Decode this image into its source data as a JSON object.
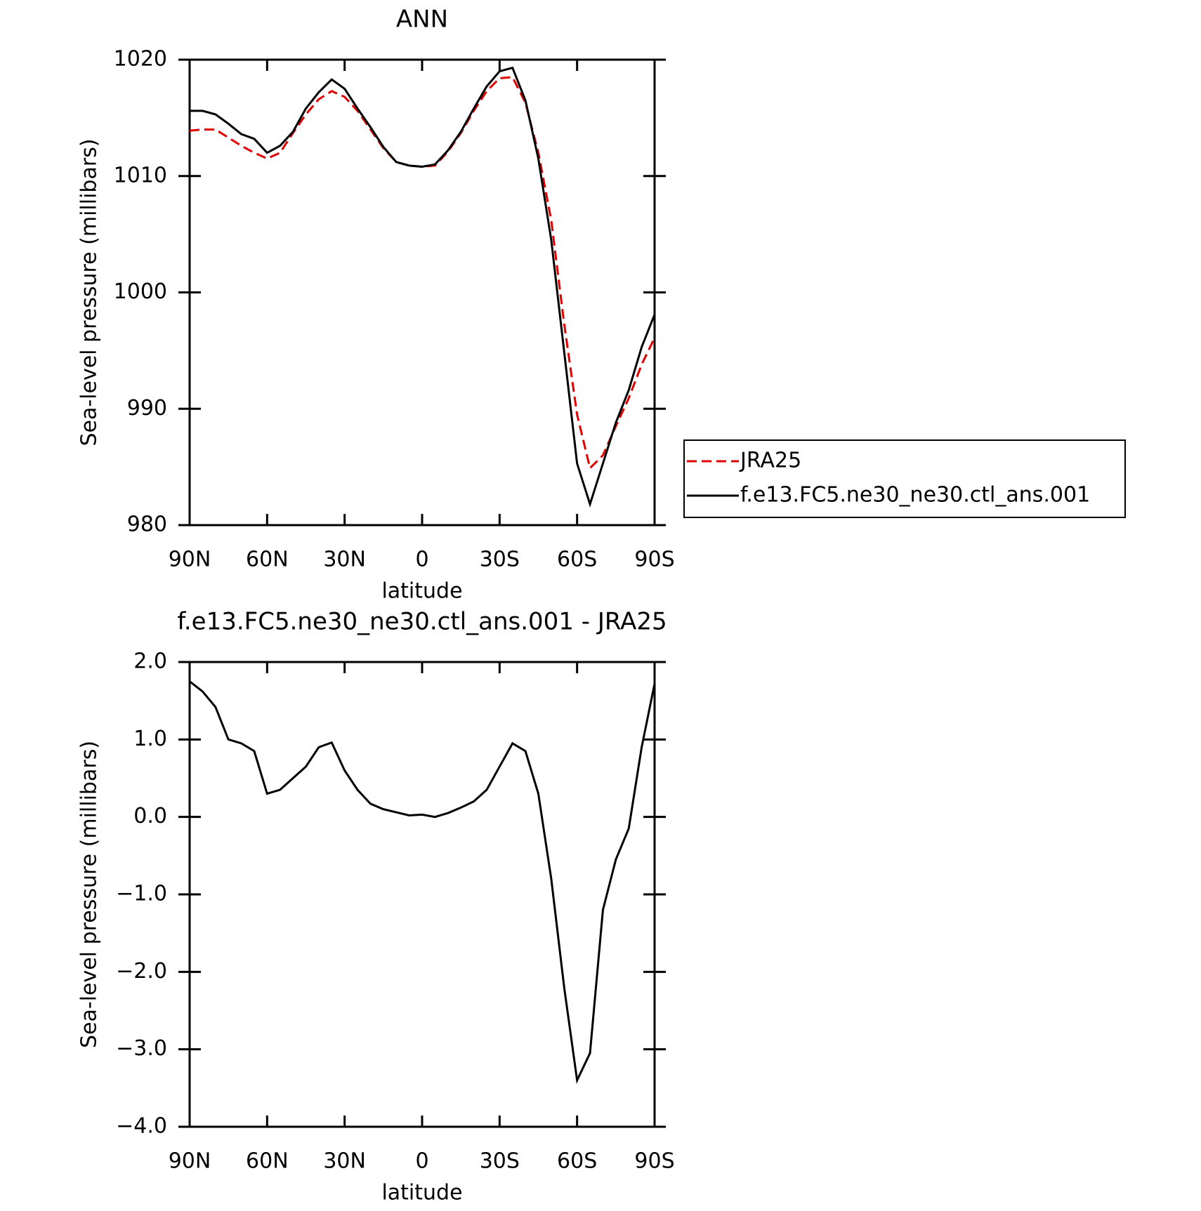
{
  "chart_data": [
    {
      "type": "line",
      "title": "ANN",
      "x_label": "latitude",
      "y_label": "Sea-level pressure (millibars)",
      "x": [
        90,
        85,
        80,
        75,
        70,
        65,
        60,
        55,
        50,
        45,
        40,
        35,
        30,
        25,
        20,
        15,
        10,
        5,
        0,
        -5,
        -10,
        -15,
        -20,
        -25,
        -30,
        -35,
        -40,
        -45,
        -50,
        -55,
        -60,
        -65,
        -70,
        -75,
        -80,
        -85,
        -90
      ],
      "series": [
        {
          "name": "JRA25",
          "color": "#e00000",
          "dash": true,
          "values": [
            1013.9,
            1014.0,
            1014.0,
            1013.3,
            1012.6,
            1012.0,
            1011.5,
            1012.0,
            1013.7,
            1015.3,
            1016.6,
            1017.3,
            1016.8,
            1015.6,
            1014.0,
            1012.4,
            1011.2,
            1010.9,
            1010.8,
            1010.9,
            1012.1,
            1013.7,
            1015.6,
            1017.3,
            1018.4,
            1018.5,
            1016.3,
            1012.0,
            1006.2,
            997.3,
            989.5,
            984.9,
            986.0,
            988.5,
            990.9,
            993.8,
            996.1
          ]
        },
        {
          "name": "f.e13.FC5.ne30_ne30.ctl_ans.001",
          "color": "#000000",
          "dash": false,
          "values": [
            1015.6,
            1015.6,
            1015.3,
            1014.5,
            1013.6,
            1013.2,
            1012.0,
            1012.6,
            1013.8,
            1015.8,
            1017.2,
            1018.3,
            1017.5,
            1015.8,
            1014.2,
            1012.5,
            1011.2,
            1010.9,
            1010.8,
            1011.0,
            1012.2,
            1013.8,
            1015.8,
            1017.7,
            1019.0,
            1019.3,
            1016.5,
            1011.5,
            1004.5,
            994.9,
            985.3,
            981.8,
            985.3,
            988.8,
            991.6,
            995.3,
            998.1
          ]
        }
      ],
      "xlim": [
        90,
        -90
      ],
      "xticks": [
        {
          "value": 90,
          "label": "90N"
        },
        {
          "value": 60,
          "label": "60N"
        },
        {
          "value": 30,
          "label": "30N"
        },
        0,
        {
          "value": -30,
          "label": "30S"
        },
        {
          "value": -60,
          "label": "60S"
        },
        {
          "value": -90,
          "label": "90S"
        }
      ],
      "ylim": [
        980,
        1020
      ],
      "yticks": [
        980,
        990,
        1000,
        1010,
        1020
      ],
      "legend": "right"
    },
    {
      "type": "line",
      "title": "f.e13.FC5.ne30_ne30.ctl_ans.001 - JRA25",
      "x_label": "latitude",
      "y_label": "Sea-level pressure (millibars)",
      "x": [
        90,
        85,
        80,
        75,
        70,
        65,
        60,
        55,
        50,
        45,
        40,
        35,
        30,
        25,
        20,
        15,
        10,
        5,
        0,
        -5,
        -10,
        -15,
        -20,
        -25,
        -30,
        -35,
        -40,
        -45,
        -50,
        -55,
        -60,
        -65,
        -70,
        -75,
        -80,
        -85,
        -90
      ],
      "color": "#000000",
      "values": [
        1.75,
        1.62,
        1.42,
        1.0,
        0.95,
        0.85,
        0.3,
        0.35,
        0.5,
        0.65,
        0.9,
        0.96,
        0.6,
        0.35,
        0.17,
        0.1,
        0.06,
        0.02,
        0.03,
        0.0,
        0.05,
        0.12,
        0.2,
        0.35,
        0.65,
        0.95,
        0.85,
        0.3,
        -0.8,
        -2.2,
        -3.4,
        -3.05,
        -1.2,
        -0.55,
        -0.15,
        0.9,
        1.72
      ],
      "xlim": [
        90,
        -90
      ],
      "xticks": [
        {
          "value": 90,
          "label": "90N"
        },
        {
          "value": 60,
          "label": "60N"
        },
        {
          "value": 30,
          "label": "30N"
        },
        0,
        {
          "value": -30,
          "label": "30S"
        },
        {
          "value": -60,
          "label": "60S"
        },
        {
          "value": -90,
          "label": "90S"
        }
      ],
      "ylim": [
        -4,
        2
      ],
      "yticks": [
        {
          "value": -4,
          "label": "−4.0"
        },
        {
          "value": -3,
          "label": "−3.0"
        },
        {
          "value": -2,
          "label": "−2.0"
        },
        {
          "value": -1,
          "label": "−1.0"
        },
        {
          "value": 0,
          "label": "0.0"
        },
        {
          "value": 1,
          "label": "1.0"
        },
        {
          "value": 2,
          "label": "2.0"
        }
      ]
    }
  ]
}
